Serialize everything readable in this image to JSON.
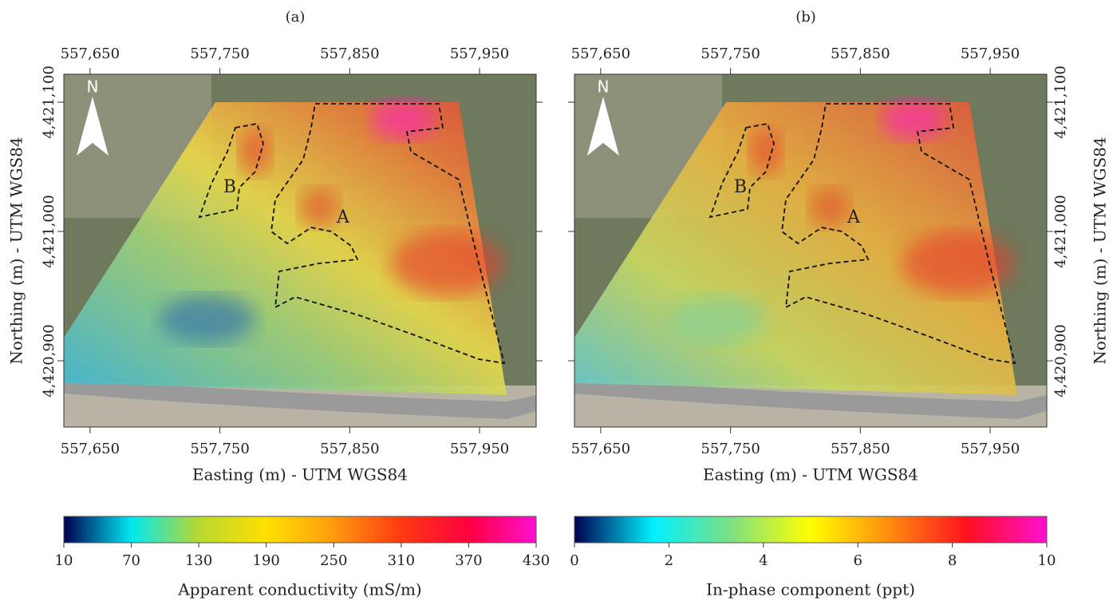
{
  "panels": [
    {
      "label": "(a)",
      "x_axis": {
        "title": "Easting (m) - UTM WGS84",
        "lim": [
          557629.8,
          557993.6
        ],
        "ticks": [
          {
            "value": 557650,
            "label": "557,650"
          },
          {
            "value": 557750,
            "label": "557,750"
          },
          {
            "value": 557850,
            "label": "557,850"
          },
          {
            "value": 557950,
            "label": "557,950"
          }
        ]
      },
      "y_axis": {
        "title": "Northing (m) - UTM WGS84",
        "lim": [
          4420848.8,
          4421121.6
        ],
        "ticks": [
          {
            "value": 4420900,
            "label": "4,420,900"
          },
          {
            "value": 4421000,
            "label": "4,421,000"
          },
          {
            "value": 4421100,
            "label": "4,421,100"
          }
        ]
      },
      "north": "N",
      "zones": [
        "A",
        "B"
      ],
      "colorbar": {
        "title": "Apparent conductivity (mS/m)",
        "lim": [
          10,
          430
        ],
        "ticks": [
          10,
          70,
          130,
          190,
          250,
          310,
          370,
          430
        ],
        "colors": [
          "#000050",
          "#00e8f0",
          "#b8d830",
          "#ffe000",
          "#ff9a10",
          "#ff3a10",
          "#ff0040",
          "#ff10d0"
        ]
      }
    },
    {
      "label": "(b)",
      "x_axis": {
        "title": "Easting (m) - UTM WGS84",
        "lim": [
          557629.8,
          557993.6
        ],
        "ticks": [
          {
            "value": 557650,
            "label": "557,650"
          },
          {
            "value": 557750,
            "label": "557,750"
          },
          {
            "value": 557850,
            "label": "557,850"
          },
          {
            "value": 557950,
            "label": "557,950"
          }
        ]
      },
      "y_axis": {
        "title": "Northing (m) - UTM WGS84",
        "lim": [
          4420848.8,
          4421121.6
        ],
        "ticks": [
          {
            "value": 4420900,
            "label": "4,420,900"
          },
          {
            "value": 4421000,
            "label": "4,421,000"
          },
          {
            "value": 4421100,
            "label": "4,421,100"
          }
        ]
      },
      "north": "N",
      "zones": [
        "A",
        "B"
      ],
      "colorbar": {
        "title": "In-phase component (ppt)",
        "lim": [
          0,
          10
        ],
        "ticks": [
          0,
          2,
          4,
          6,
          8,
          10
        ],
        "colors": [
          "#000050",
          "#00f0ff",
          "#80e080",
          "#ffff00",
          "#ff8c10",
          "#ff1020",
          "#ff10d0"
        ]
      }
    }
  ]
}
